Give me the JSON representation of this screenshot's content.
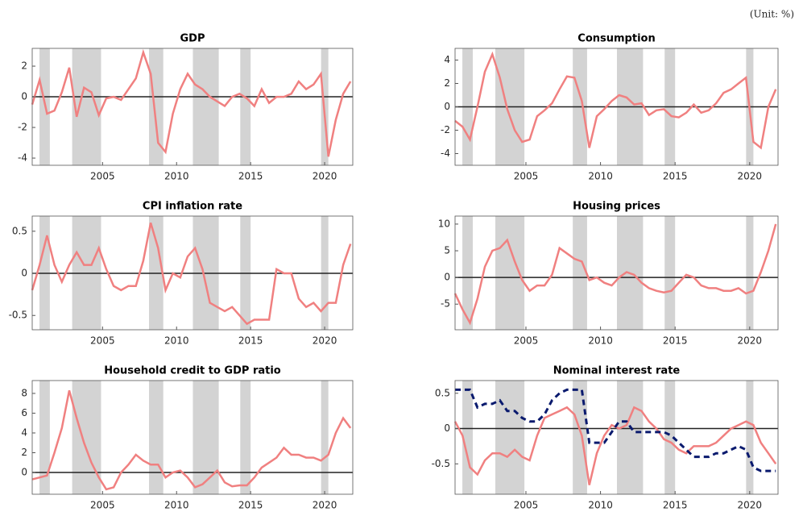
{
  "unit_note": "(Unit: %)",
  "chart_data": [
    {
      "type": "line",
      "title": "GDP",
      "x": [
        2000.25,
        2000.75,
        2001.25,
        2001.75,
        2002.25,
        2002.75,
        2003.25,
        2003.75,
        2004.25,
        2004.75,
        2005.25,
        2005.75,
        2006.25,
        2006.75,
        2007.25,
        2007.75,
        2008.25,
        2008.75,
        2009.25,
        2009.75,
        2010.25,
        2010.75,
        2011.25,
        2011.75,
        2012.25,
        2012.75,
        2013.25,
        2013.75,
        2014.25,
        2014.75,
        2015.25,
        2015.75,
        2016.25,
        2016.75,
        2017.25,
        2017.75,
        2018.25,
        2018.75,
        2019.25,
        2019.75,
        2020.25,
        2020.75,
        2021.25,
        2021.75
      ],
      "series": [
        {
          "color": "#f08080",
          "values": [
            -0.5,
            1.1,
            -1.1,
            -0.9,
            0.3,
            1.9,
            -1.3,
            0.6,
            0.3,
            -1.2,
            -0.1,
            0.0,
            -0.2,
            0.5,
            1.2,
            2.9,
            1.5,
            -3.0,
            -3.6,
            -1.1,
            0.5,
            1.5,
            0.8,
            0.5,
            0.0,
            -0.3,
            -0.6,
            0.0,
            0.2,
            -0.1,
            -0.6,
            0.5,
            -0.4,
            0.0,
            0.0,
            0.2,
            1.0,
            0.5,
            0.8,
            1.5,
            -3.9,
            -1.5,
            0.2,
            1.0
          ]
        }
      ],
      "xlim": [
        2000.25,
        2021.9
      ],
      "xticks": [
        2005,
        2010,
        2015,
        2020
      ],
      "ylim": [
        -4.47,
        3.16
      ],
      "yticks": [
        -4,
        -2,
        0,
        2
      ],
      "hline": 0,
      "shaded_periods": [
        [
          2000.74,
          2001.44
        ],
        [
          2002.95,
          2004.9
        ],
        [
          2008.14,
          2009.1
        ],
        [
          2011.1,
          2012.85
        ],
        [
          2014.3,
          2015.0
        ],
        [
          2019.76,
          2020.25
        ]
      ],
      "shade_color": "#d3d3d3"
    },
    {
      "type": "line",
      "title": "Consumption",
      "x": [
        2000.25,
        2000.75,
        2001.25,
        2001.75,
        2002.25,
        2002.75,
        2003.25,
        2003.75,
        2004.25,
        2004.75,
        2005.25,
        2005.75,
        2006.25,
        2006.75,
        2007.25,
        2007.75,
        2008.25,
        2008.75,
        2009.25,
        2009.75,
        2010.25,
        2010.75,
        2011.25,
        2011.75,
        2012.25,
        2012.75,
        2013.25,
        2013.75,
        2014.25,
        2014.75,
        2015.25,
        2015.75,
        2016.25,
        2016.75,
        2017.25,
        2017.75,
        2018.25,
        2018.75,
        2019.25,
        2019.75,
        2020.25,
        2020.75,
        2021.25,
        2021.75
      ],
      "series": [
        {
          "color": "#f08080",
          "values": [
            -1.2,
            -1.7,
            -2.8,
            0,
            3.0,
            4.5,
            2.5,
            -0.2,
            -2.0,
            -3.0,
            -2.8,
            -0.8,
            -0.3,
            0.3,
            1.5,
            2.6,
            2.5,
            0.5,
            -3.5,
            -0.8,
            -0.2,
            0.5,
            1.0,
            0.8,
            0.2,
            0.3,
            -0.7,
            -0.3,
            -0.2,
            -0.8,
            -0.9,
            -0.5,
            0.2,
            -0.5,
            -0.3,
            0.3,
            1.2,
            1.5,
            2.0,
            2.5,
            -3.0,
            -3.5,
            0.0,
            1.5
          ]
        }
      ],
      "xlim": [
        2000.25,
        2021.9
      ],
      "xticks": [
        2005,
        2010,
        2015,
        2020
      ],
      "ylim": [
        -5,
        5
      ],
      "yticks": [
        -4,
        -2,
        0,
        2,
        4
      ],
      "hline": 0,
      "shaded_periods": [
        [
          2000.74,
          2001.44
        ],
        [
          2002.95,
          2004.9
        ],
        [
          2008.14,
          2009.1
        ],
        [
          2011.1,
          2012.85
        ],
        [
          2014.3,
          2015.0
        ],
        [
          2019.76,
          2020.25
        ]
      ],
      "shade_color": "#d3d3d3"
    },
    {
      "type": "line",
      "title": "CPI inflation rate",
      "x": [
        2000.25,
        2000.75,
        2001.25,
        2001.75,
        2002.25,
        2002.75,
        2003.25,
        2003.75,
        2004.25,
        2004.75,
        2005.25,
        2005.75,
        2006.25,
        2006.75,
        2007.25,
        2007.75,
        2008.25,
        2008.75,
        2009.25,
        2009.75,
        2010.25,
        2010.75,
        2011.25,
        2011.75,
        2012.25,
        2012.75,
        2013.25,
        2013.75,
        2014.25,
        2014.75,
        2015.25,
        2015.75,
        2016.25,
        2016.75,
        2017.25,
        2017.75,
        2018.25,
        2018.75,
        2019.25,
        2019.75,
        2020.25,
        2020.75,
        2021.25,
        2021.75
      ],
      "series": [
        {
          "color": "#f08080",
          "values": [
            -0.2,
            0.1,
            0.45,
            0.1,
            -0.1,
            0.1,
            0.25,
            0.1,
            0.1,
            0.3,
            0.05,
            -0.15,
            -0.2,
            -0.15,
            -0.15,
            0.15,
            0.6,
            0.3,
            -0.2,
            0.0,
            -0.05,
            0.2,
            0.3,
            0.05,
            -0.35,
            -0.4,
            -0.45,
            -0.4,
            -0.5,
            -0.6,
            -0.55,
            -0.55,
            -0.55,
            0.05,
            0.0,
            0.0,
            -0.3,
            -0.4,
            -0.35,
            -0.45,
            -0.35,
            -0.35,
            0.1,
            0.35
          ]
        }
      ],
      "xlim": [
        2000.25,
        2021.9
      ],
      "xticks": [
        2005,
        2010,
        2015,
        2020
      ],
      "ylim": [
        -0.67,
        0.68
      ],
      "yticks": [
        -0.5,
        0,
        0.5
      ],
      "hline": 0,
      "shaded_periods": [
        [
          2000.74,
          2001.44
        ],
        [
          2002.95,
          2004.9
        ],
        [
          2008.14,
          2009.1
        ],
        [
          2011.1,
          2012.85
        ],
        [
          2014.3,
          2015.0
        ],
        [
          2019.76,
          2020.25
        ]
      ],
      "shade_color": "#d3d3d3"
    },
    {
      "type": "line",
      "title": "Housing prices",
      "x": [
        2000.25,
        2000.75,
        2001.25,
        2001.75,
        2002.25,
        2002.75,
        2003.25,
        2003.75,
        2004.25,
        2004.75,
        2005.25,
        2005.75,
        2006.25,
        2006.75,
        2007.25,
        2007.75,
        2008.25,
        2008.75,
        2009.25,
        2009.75,
        2010.25,
        2010.75,
        2011.25,
        2011.75,
        2012.25,
        2012.75,
        2013.25,
        2013.75,
        2014.25,
        2014.75,
        2015.25,
        2015.75,
        2016.25,
        2016.75,
        2017.25,
        2017.75,
        2018.25,
        2018.75,
        2019.25,
        2019.75,
        2020.25,
        2020.75,
        2021.25,
        2021.75
      ],
      "series": [
        {
          "color": "#f08080",
          "values": [
            -3,
            -6,
            -8.5,
            -4,
            2,
            5,
            5.5,
            7,
            3,
            -0.5,
            -2.5,
            -1.5,
            -1.5,
            0.5,
            5.5,
            4.5,
            3.5,
            3,
            -0.5,
            0,
            -1,
            -1.5,
            0,
            1,
            0.5,
            -1,
            -2,
            -2.5,
            -2.8,
            -2.5,
            -1,
            0.5,
            0,
            -1.5,
            -2,
            -2,
            -2.5,
            -2.5,
            -2,
            -3,
            -2.5,
            1,
            5,
            10
          ]
        }
      ],
      "xlim": [
        2000.25,
        2021.9
      ],
      "xticks": [
        2005,
        2010,
        2015,
        2020
      ],
      "ylim": [
        -9.8,
        11.5
      ],
      "yticks": [
        -5,
        0,
        5,
        10
      ],
      "hline": 0,
      "shaded_periods": [
        [
          2000.74,
          2001.44
        ],
        [
          2002.95,
          2004.9
        ],
        [
          2008.14,
          2009.1
        ],
        [
          2011.1,
          2012.85
        ],
        [
          2014.3,
          2015.0
        ],
        [
          2019.76,
          2020.25
        ]
      ],
      "shade_color": "#d3d3d3"
    },
    {
      "type": "line",
      "title": "Household credit to GDP ratio",
      "x": [
        2000.25,
        2000.75,
        2001.25,
        2001.75,
        2002.25,
        2002.75,
        2003.25,
        2003.75,
        2004.25,
        2004.75,
        2005.25,
        2005.75,
        2006.25,
        2006.75,
        2007.25,
        2007.75,
        2008.25,
        2008.75,
        2009.25,
        2009.75,
        2010.25,
        2010.75,
        2011.25,
        2011.75,
        2012.25,
        2012.75,
        2013.25,
        2013.75,
        2014.25,
        2014.75,
        2015.25,
        2015.75,
        2016.25,
        2016.75,
        2017.25,
        2017.75,
        2018.25,
        2018.75,
        2019.25,
        2019.75,
        2020.25,
        2020.75,
        2021.25,
        2021.75
      ],
      "series": [
        {
          "color": "#f08080",
          "values": [
            -0.7,
            -0.5,
            -0.3,
            2,
            4.5,
            8.3,
            5.5,
            3,
            1,
            -0.5,
            -1.7,
            -1.5,
            0,
            0.8,
            1.8,
            1.2,
            0.8,
            0.8,
            -0.5,
            0,
            0.2,
            -0.5,
            -1.5,
            -1.2,
            -0.5,
            0.2,
            -1,
            -1.4,
            -1.3,
            -1.3,
            -0.5,
            0.5,
            1,
            1.5,
            2.5,
            1.8,
            1.8,
            1.5,
            1.5,
            1.2,
            1.8,
            4,
            5.5,
            4.5
          ]
        }
      ],
      "xlim": [
        2000.25,
        2021.9
      ],
      "xticks": [
        2005,
        2010,
        2015,
        2020
      ],
      "ylim": [
        -2.2,
        9.3
      ],
      "yticks": [
        0,
        2,
        4,
        6,
        8
      ],
      "hline": 0,
      "shaded_periods": [
        [
          2000.74,
          2001.44
        ],
        [
          2002.95,
          2004.9
        ],
        [
          2008.14,
          2009.1
        ],
        [
          2011.1,
          2012.85
        ],
        [
          2014.3,
          2015.0
        ],
        [
          2019.76,
          2020.25
        ]
      ],
      "shade_color": "#d3d3d3"
    },
    {
      "type": "line",
      "title": "Nominal interest rate",
      "x": [
        2000.25,
        2000.75,
        2001.25,
        2001.75,
        2002.25,
        2002.75,
        2003.25,
        2003.75,
        2004.25,
        2004.75,
        2005.25,
        2005.75,
        2006.25,
        2006.75,
        2007.25,
        2007.75,
        2008.25,
        2008.75,
        2009.25,
        2009.75,
        2010.25,
        2010.75,
        2011.25,
        2011.75,
        2012.25,
        2012.75,
        2013.25,
        2013.75,
        2014.25,
        2014.75,
        2015.25,
        2015.75,
        2016.25,
        2016.75,
        2017.25,
        2017.75,
        2018.25,
        2018.75,
        2019.25,
        2019.75,
        2020.25,
        2020.75,
        2021.25,
        2021.75
      ],
      "series": [
        {
          "color": "#f08080",
          "values": [
            0.1,
            -0.1,
            -0.55,
            -0.65,
            -0.45,
            -0.35,
            -0.35,
            -0.4,
            -0.3,
            -0.4,
            -0.45,
            -0.1,
            0.15,
            0.2,
            0.25,
            0.3,
            0.2,
            -0.1,
            -0.8,
            -0.35,
            -0.1,
            0.05,
            0.0,
            0.05,
            0.3,
            0.25,
            0.1,
            0.0,
            -0.15,
            -0.2,
            -0.3,
            -0.35,
            -0.25,
            -0.25,
            -0.25,
            -0.2,
            -0.1,
            0.0,
            0.05,
            0.1,
            0.05,
            -0.2,
            -0.35,
            -0.5
          ]
        },
        {
          "color": "#0a1a6e",
          "dashed": true,
          "values": [
            0.55,
            0.55,
            0.55,
            0.3,
            0.35,
            0.35,
            0.4,
            0.25,
            0.25,
            0.15,
            0.1,
            0.1,
            0.2,
            0.4,
            0.5,
            0.55,
            0.55,
            0.55,
            -0.2,
            -0.2,
            -0.2,
            -0.05,
            0.1,
            0.1,
            -0.05,
            -0.05,
            -0.05,
            -0.05,
            -0.05,
            -0.1,
            -0.2,
            -0.3,
            -0.4,
            -0.4,
            -0.4,
            -0.35,
            -0.35,
            -0.3,
            -0.25,
            -0.3,
            -0.55,
            -0.6,
            -0.6,
            -0.6
          ]
        }
      ],
      "xlim": [
        2000.25,
        2021.9
      ],
      "xticks": [
        2005,
        2010,
        2015,
        2020
      ],
      "ylim": [
        -0.93,
        0.68
      ],
      "yticks": [
        -0.5,
        0,
        0.5
      ],
      "hline": 0,
      "shaded_periods": [
        [
          2000.74,
          2001.44
        ],
        [
          2002.95,
          2004.9
        ],
        [
          2008.14,
          2009.1
        ],
        [
          2011.1,
          2012.85
        ],
        [
          2014.3,
          2015.0
        ],
        [
          2019.76,
          2020.25
        ]
      ],
      "shade_color": "#d3d3d3"
    }
  ]
}
